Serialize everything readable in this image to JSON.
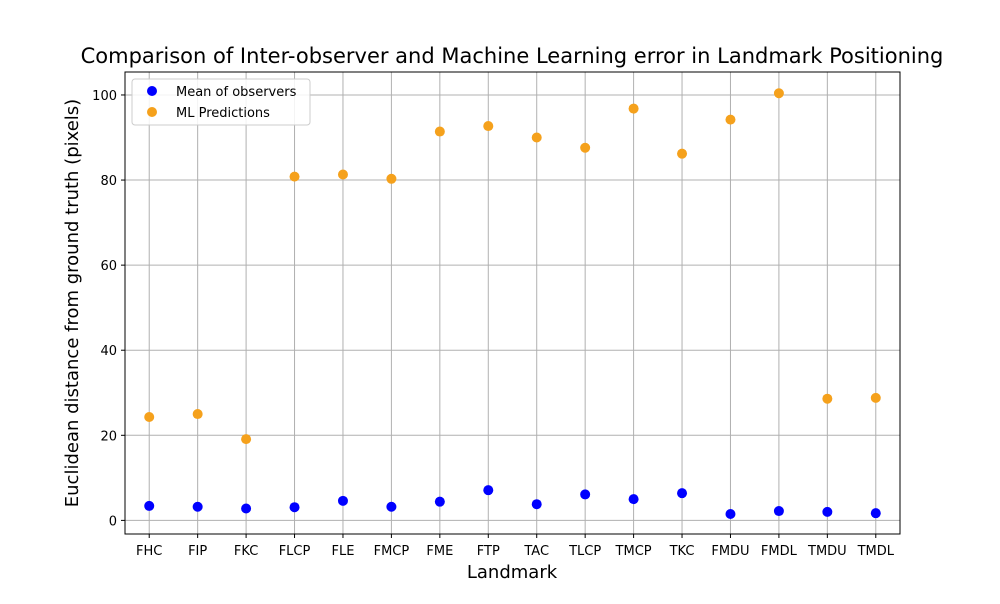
{
  "chart_data": {
    "type": "scatter",
    "title": "Comparison of Inter-observer and Machine Learning error in Landmark Positioning",
    "xlabel": "Landmark",
    "ylabel": "Euclidean distance from ground truth (pixels)",
    "categories": [
      "FHC",
      "FIP",
      "FKC",
      "FLCP",
      "FLE",
      "FMCP",
      "FME",
      "FTP",
      "TAC",
      "TLCP",
      "TMCP",
      "TKC",
      "FMDU",
      "FMDL",
      "TMDU",
      "TMDL"
    ],
    "ylim": [
      -3.2,
      105.4
    ],
    "yticks": [
      0,
      20,
      40,
      60,
      80,
      100
    ],
    "grid": true,
    "legend_position": "top-left",
    "series": [
      {
        "name": "Mean of observers",
        "color": "#0000ff",
        "values": [
          3.4,
          3.2,
          2.8,
          3.1,
          4.6,
          3.2,
          4.4,
          7.1,
          3.8,
          6.1,
          5.0,
          6.4,
          1.5,
          2.2,
          2.0,
          1.7
        ]
      },
      {
        "name": "ML Predictions",
        "color": "#f5a11c",
        "values": [
          24.3,
          25.0,
          19.1,
          80.8,
          81.3,
          80.3,
          91.4,
          92.7,
          90.0,
          87.6,
          96.8,
          86.2,
          94.2,
          100.4,
          28.6,
          28.8
        ]
      }
    ]
  }
}
